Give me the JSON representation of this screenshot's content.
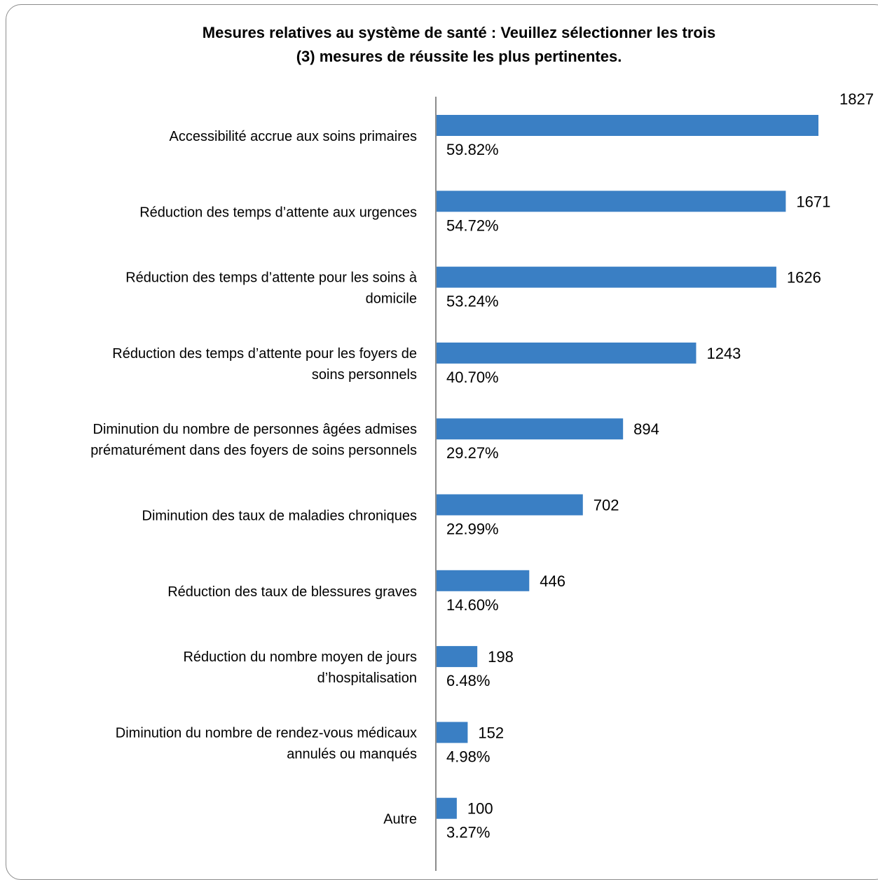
{
  "chart_data": {
    "type": "bar",
    "orientation": "horizontal",
    "title": "Mesures relatives au système de santé : Veuillez sélectionner les trois (3) mesures de réussite les plus pertinentes.",
    "title_lines": [
      "Mesures relatives au système de santé : Veuillez sélectionner les trois",
      "(3) mesures de réussite les plus pertinentes."
    ],
    "xlabel": "",
    "ylabel": "",
    "grid": false,
    "legend": "none",
    "bar_color": "#3a7fc4",
    "axis_color": "#8c8c8c",
    "categories": [
      [
        "Accessibilité accrue aux soins primaires"
      ],
      [
        "Réduction des temps d’attente aux urgences"
      ],
      [
        "Réduction des temps d’attente pour les soins à",
        "domicile"
      ],
      [
        "Réduction des temps d’attente pour les foyers de",
        "soins personnels"
      ],
      [
        "Diminution du nombre de personnes âgées admises",
        "prématurément dans des foyers de soins personnels"
      ],
      [
        "Diminution des taux de maladies chroniques"
      ],
      [
        "Réduction des taux de blessures graves"
      ],
      [
        "Réduction du nombre moyen de jours",
        "d’hospitalisation"
      ],
      [
        "Diminution du nombre de rendez-vous médicaux",
        "annulés ou manqués"
      ],
      [
        "Autre"
      ]
    ],
    "values": [
      1827,
      1671,
      1626,
      1243,
      894,
      702,
      446,
      198,
      152,
      100
    ],
    "percentages": [
      "59.82%",
      "54.72%",
      "53.24%",
      "40.70%",
      "29.27%",
      "22.99%",
      "14.60%",
      "6.48%",
      "4.98%",
      "3.27%"
    ]
  }
}
